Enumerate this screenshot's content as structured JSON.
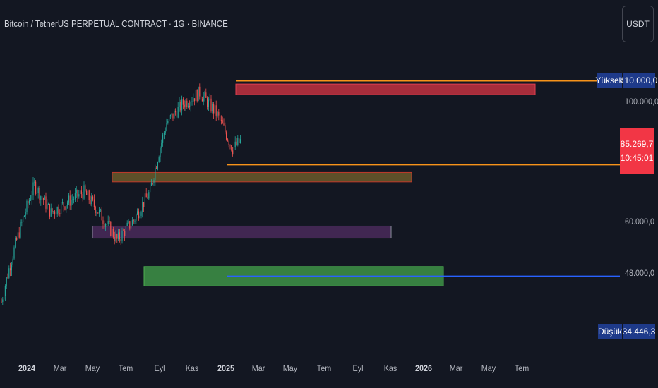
{
  "header": {
    "title": "Bitcoin / TetherUS PERPETUAL CONTRACT · 1G · BINANCE",
    "currency_button": "USDT"
  },
  "price_axis": {
    "labels": [
      "100.000,0",
      "60.000,0",
      "48.000,0"
    ],
    "high_tag": "Yüksek",
    "high_value": "110.000,0",
    "low_tag": "Düşük",
    "low_value": "34.446,3",
    "last_price": "85.269,7",
    "countdown": "10:45:01"
  },
  "time_axis": {
    "labels": [
      "2024",
      "Mar",
      "May",
      "Tem",
      "Eyl",
      "Kas",
      "2025",
      "Mar",
      "May",
      "Tem",
      "Eyl",
      "Kas",
      "2026",
      "Mar",
      "May",
      "Tem"
    ]
  },
  "colors": {
    "background": "#131722",
    "up": "#26a69a",
    "down": "#ef5350",
    "orange_line": "#f7931a",
    "blue_line": "#2962ff",
    "red_zone": "#c2313f",
    "olive_zone": "#6b5a2a",
    "purple_zone": "#4a2a5a",
    "green_zone": "#3c8c45"
  },
  "chart_data": {
    "type": "candlestick",
    "symbol": "Bitcoin / TetherUS PERPETUAL CONTRACT",
    "interval": "1G",
    "exchange": "BINANCE",
    "ylabel_ticks": [
      100000,
      60000,
      48000
    ],
    "high": 110000,
    "low": 34446.3,
    "last_price": 85269.7,
    "approx_path": [
      {
        "date": "2024-01",
        "price": 42000
      },
      {
        "date": "2024-03",
        "price": 70000
      },
      {
        "date": "2024-04",
        "price": 62000
      },
      {
        "date": "2024-06",
        "price": 68000
      },
      {
        "date": "2024-08",
        "price": 55000
      },
      {
        "date": "2024-09",
        "price": 60000
      },
      {
        "date": "2024-10",
        "price": 68000
      },
      {
        "date": "2024-11",
        "price": 92000
      },
      {
        "date": "2024-12",
        "price": 100000
      },
      {
        "date": "2025-01",
        "price": 105000
      },
      {
        "date": "2025-02",
        "price": 96000
      },
      {
        "date": "2025-03",
        "price": 82000
      },
      {
        "date": "2025-03",
        "price": 85269.7
      }
    ],
    "zones": [
      {
        "name": "red",
        "top": 109000,
        "bottom": 104000
      },
      {
        "name": "olive",
        "top": 74000,
        "bottom": 71000
      },
      {
        "name": "purple",
        "top": 58500,
        "bottom": 55500
      },
      {
        "name": "green",
        "top": 49000,
        "bottom": 45000
      }
    ],
    "horizontal_lines": [
      {
        "price": 110500,
        "color": "orange"
      },
      {
        "price": 76500,
        "color": "orange"
      },
      {
        "price": 47000,
        "color": "blue"
      }
    ]
  }
}
